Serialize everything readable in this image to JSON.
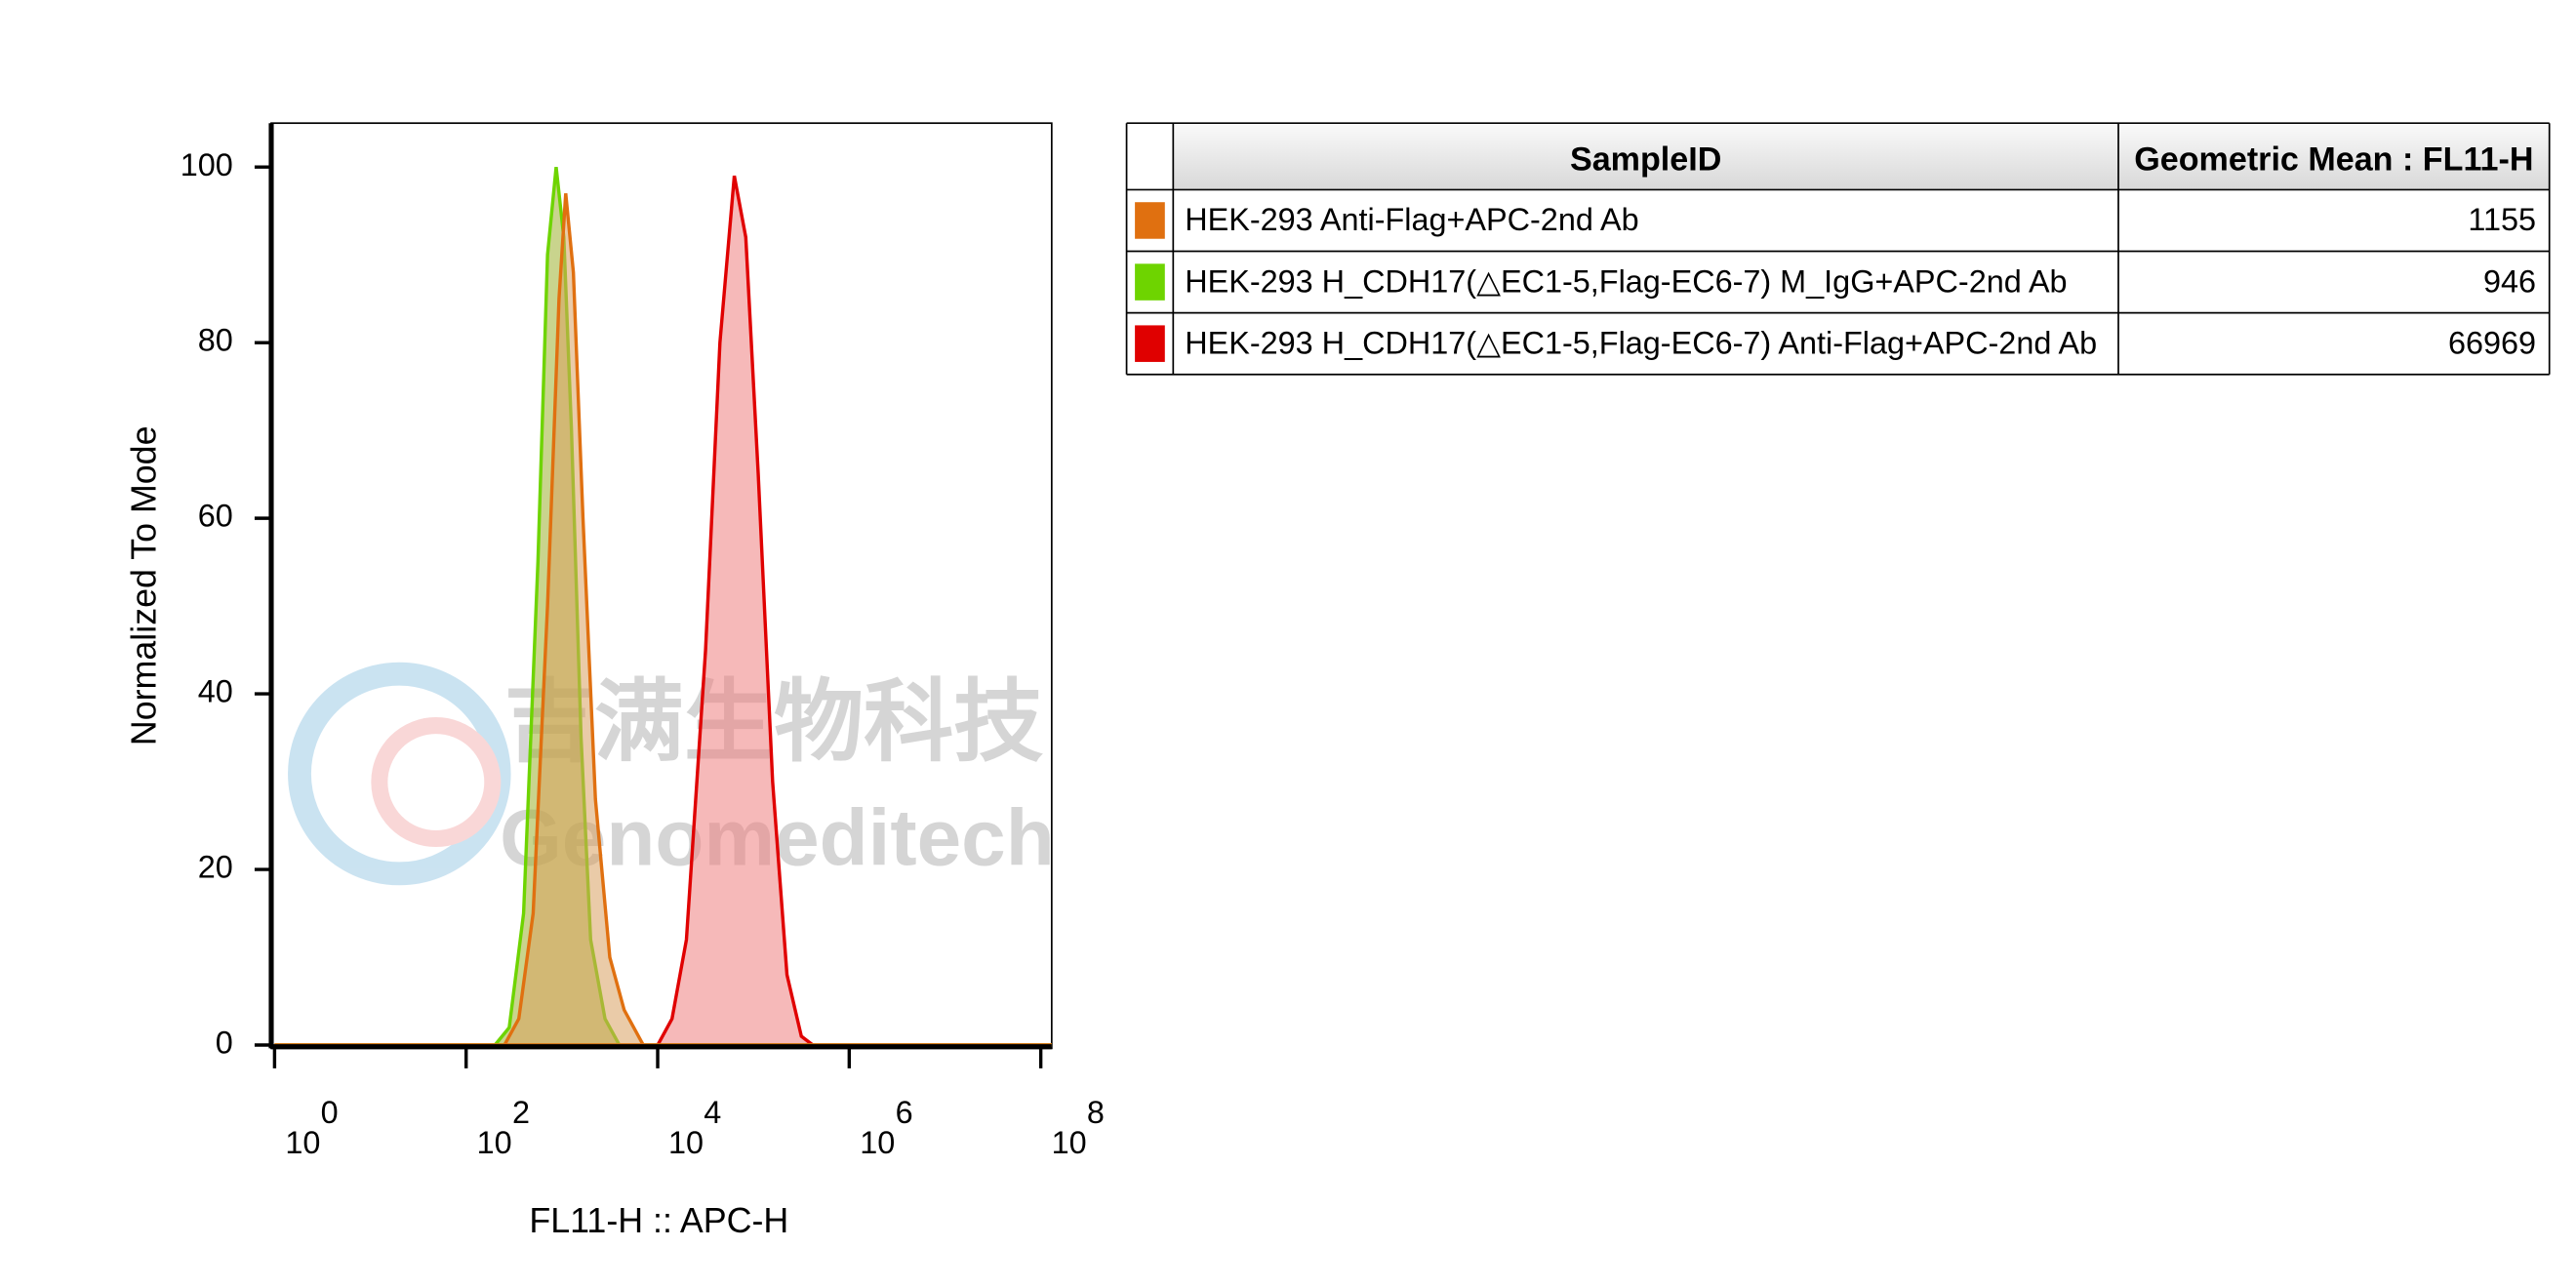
{
  "chart_data": {
    "type": "histogram",
    "x_label": "FL11-H :: APC-H",
    "y_label": "Normalized To Mode",
    "xscale": "log",
    "xlim": [
      1,
      130000000
    ],
    "ylim": [
      0,
      105
    ],
    "xticks": [
      {
        "value": 1,
        "label": "10",
        "exponent": "0"
      },
      {
        "value": 100,
        "label": "10",
        "exponent": "2"
      },
      {
        "value": 10000,
        "label": "10",
        "exponent": "4"
      },
      {
        "value": 1000000,
        "label": "10",
        "exponent": "6"
      },
      {
        "value": 100000000,
        "label": "10",
        "exponent": "8"
      }
    ],
    "yticks": [
      0,
      20,
      40,
      60,
      80,
      100
    ],
    "series": [
      {
        "name": "HEK-293 Anti-Flag+APC-2nd Ab",
        "color": "#e07010",
        "fill": "#d8a060",
        "x": [
          1,
          251,
          355,
          501,
          708,
          933,
          1096,
          1318,
          1660,
          2239,
          3162,
          4467,
          7079,
          130000000
        ],
        "values": [
          0,
          0,
          3,
          15,
          50,
          85,
          97,
          88,
          60,
          28,
          10,
          4,
          0,
          0
        ]
      },
      {
        "name": "HEK-293 H_CDH17(△EC1-5,Flag-EC6-7) M_IgG+APC-2nd Ab",
        "color": "#6ed400",
        "fill": "#9cb030",
        "x": [
          1,
          200,
          282,
          398,
          562,
          708,
          871,
          1047,
          1259,
          1585,
          1995,
          2818,
          3981,
          130000000
        ],
        "values": [
          0,
          0,
          2,
          15,
          55,
          90,
          100,
          92,
          70,
          35,
          12,
          3,
          0,
          0
        ]
      },
      {
        "name": "HEK-293 H_CDH17(△EC1-5,Flag-EC6-7) Anti-Flag+APC-2nd Ab",
        "color": "#e00000",
        "fill": "#ee8080",
        "x": [
          1,
          10000,
          14125,
          19953,
          31623,
          44668,
          63096,
          83176,
          112202,
          158489,
          223872,
          316228,
          416869,
          130000000
        ],
        "values": [
          0,
          0,
          3,
          12,
          45,
          80,
          99,
          92,
          65,
          30,
          8,
          1,
          0,
          0
        ]
      }
    ]
  },
  "table": {
    "headers": [
      "SampleID",
      "Geometric Mean : FL11-H"
    ],
    "values": [
      1155,
      946,
      66969
    ]
  },
  "watermark": {
    "text_cn": "吉满生物科技",
    "text_en": "Genomeditech"
  }
}
